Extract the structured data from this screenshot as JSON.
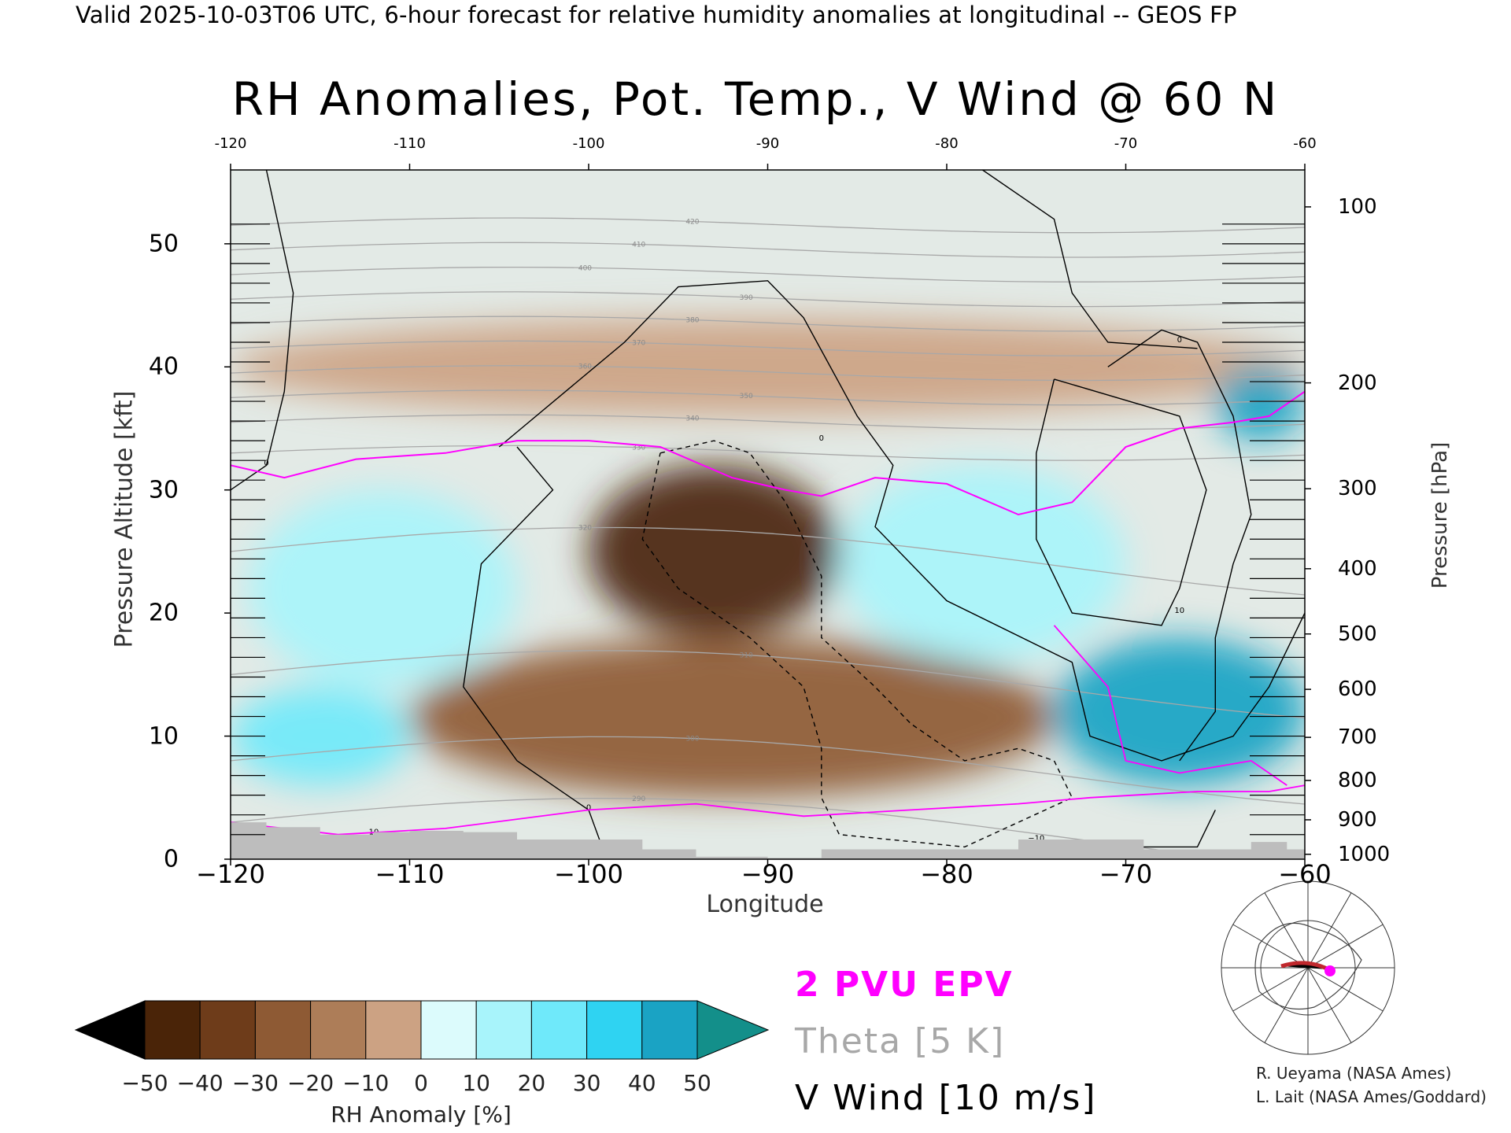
{
  "header": {
    "text": "Valid 2025-10-03T06 UTC, 6-hour forecast for relative humidity anomalies at longitudinal -- GEOS FP"
  },
  "colors": {
    "epv": "#ff00ff",
    "theta": "#a8a8a8",
    "wind": "#000000",
    "topography": "#bdbdbd"
  },
  "chart_data": {
    "type": "heatmap",
    "title": "RH Anomalies, Pot. Temp., V Wind @ 60 N",
    "xlabel": "Longitude",
    "ylabel_left": "Pressure Altitude [kft]",
    "ylabel_right": "Pressure [hPa]",
    "xlim": [
      -120,
      -60
    ],
    "ylim": [
      0,
      56
    ],
    "x_ticks": [
      -120,
      -110,
      -100,
      -90,
      -80,
      -70,
      -60
    ],
    "x_tick_labels": [
      "−120",
      "−110",
      "−100",
      "−90",
      "−80",
      "−70",
      "−60"
    ],
    "x_ticks_top_labels": [
      "-120",
      "-110",
      "-100",
      "-90",
      "-80",
      "-70",
      "-60"
    ],
    "y_ticks_left": [
      0,
      10,
      20,
      30,
      40,
      50
    ],
    "y_ticks_right_labels": [
      "100",
      "200",
      "300",
      "400",
      "500",
      "600",
      "700",
      "800",
      "900",
      "1000"
    ],
    "y_ticks_right_kft": [
      53.0,
      38.7,
      30.1,
      23.6,
      18.3,
      13.8,
      9.9,
      6.4,
      3.2,
      0.4
    ],
    "colorbar": {
      "label": "RH Anomaly [%]",
      "ticks": [
        "−50",
        "−40",
        "−30",
        "−20",
        "−10",
        "0",
        "10",
        "20",
        "30",
        "40",
        "50"
      ],
      "colors": [
        "#4a2408",
        "#6e3c1a",
        "#8e5a34",
        "#ad7d58",
        "#cca283",
        "#eed8cb",
        "#dcfbfc",
        "#a8f4fb",
        "#6fe9fa",
        "#2fd3f2",
        "#1aa3c4"
      ],
      "low_extend_color": "#000000",
      "high_extend_color": "#138f8a"
    },
    "rh_anomaly_regions": [
      {
        "region": "upper troposphere band",
        "lon": [
          -120,
          -60
        ],
        "kft": [
          36,
          44
        ],
        "value": -10
      },
      {
        "region": "central dry core",
        "lon": [
          -100,
          -86
        ],
        "kft": [
          18,
          32
        ],
        "value": -45
      },
      {
        "region": "lower dry layer",
        "lon": [
          -110,
          -74
        ],
        "kft": [
          5,
          18
        ],
        "value": -30
      },
      {
        "region": "western moist pocket",
        "lon": [
          -119,
          -104
        ],
        "kft": [
          14,
          30
        ],
        "value": 25
      },
      {
        "region": "western low moist",
        "lon": [
          -120,
          -110
        ],
        "kft": [
          6,
          14
        ],
        "value": 30
      },
      {
        "region": "eastern moist band",
        "lon": [
          -86,
          -70
        ],
        "kft": [
          16,
          32
        ],
        "value": 25
      },
      {
        "region": "eastern low very moist",
        "lon": [
          -74,
          -60
        ],
        "kft": [
          6,
          18
        ],
        "value": 50
      },
      {
        "region": "upper east very moist",
        "lon": [
          -65,
          -60
        ],
        "kft": [
          34,
          40
        ],
        "value": 50
      }
    ],
    "theta_contours": {
      "interval_K": 5,
      "labels": [
        "280",
        "290",
        "300",
        "310",
        "320",
        "330",
        "340",
        "350",
        "360",
        "370",
        "380",
        "390",
        "400",
        "410",
        "420"
      ],
      "kft_at_west": [
        -2,
        3,
        8,
        15,
        25,
        33,
        35.5,
        37.5,
        39.5,
        41.5,
        43.5,
        45.5,
        47.5,
        49.5,
        51.5
      ]
    },
    "epv_2pvu": {
      "lon": [
        -120,
        -117,
        -113,
        -108,
        -104,
        -100,
        -96,
        -92,
        -89,
        -87,
        -84,
        -80,
        -76,
        -73,
        -70,
        -67,
        -64,
        -62,
        -60
      ],
      "kft": [
        32,
        31,
        32.5,
        33,
        34,
        34,
        33.5,
        31,
        30,
        29.5,
        31,
        30.5,
        28,
        29,
        33.5,
        35,
        35.5,
        36,
        38
      ]
    },
    "v_wind_contours_ms": [
      "0",
      "10",
      "−10"
    ],
    "topography_kft": {
      "lon": [
        -120,
        -118,
        -115,
        -112,
        -110,
        -107,
        -104,
        -100,
        -97,
        -94,
        -90,
        -87,
        -83,
        -80,
        -76,
        -72,
        -69,
        -66,
        -63,
        -61,
        -60
      ],
      "kft": [
        3,
        2.6,
        2,
        2.2,
        2.3,
        2.2,
        1.6,
        1.6,
        0.8,
        0.2,
        0.1,
        0.8,
        0.8,
        0.8,
        1.6,
        1.6,
        0.8,
        0.8,
        1.4,
        0.8,
        0.8
      ]
    }
  },
  "legend": {
    "epv": "2 PVU EPV",
    "theta": "Theta [5 K]",
    "wind": "V Wind [10 m/s]"
  },
  "credits": {
    "line1": "R. Ueyama (NASA Ames)",
    "line2": "L. Lait (NASA Ames/Goddard)"
  }
}
